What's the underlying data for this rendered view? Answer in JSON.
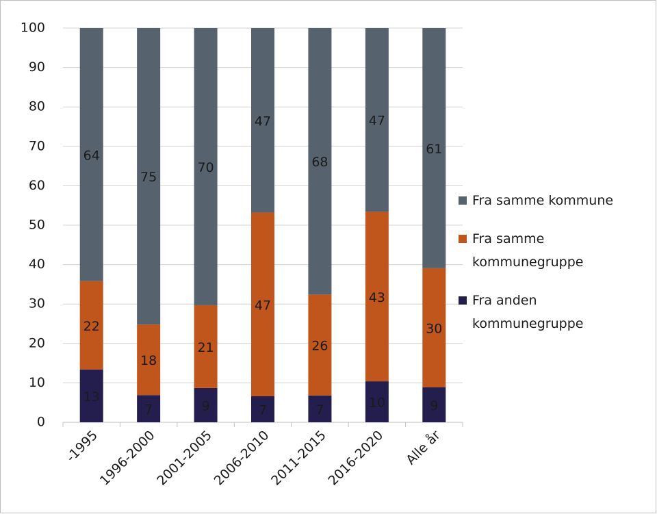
{
  "chart_data": {
    "type": "stacked_bar",
    "categories": [
      "-1995",
      "1996-2000",
      "2001-2005",
      "2006-2010",
      "2011-2015",
      "2016-2020",
      "Alle år"
    ],
    "series": [
      {
        "name": "Fra anden kommunegruppe",
        "color": "#241e4e",
        "values": [
          13.4,
          6.9,
          8.7,
          6.6,
          6.8,
          10.4,
          8.9
        ],
        "value_labels": [
          "13",
          "7",
          "9",
          "7",
          "7",
          "10",
          "9"
        ]
      },
      {
        "name": "Fra samme kommunegruppe",
        "color": "#c0561c",
        "values": [
          22.4,
          17.9,
          21.0,
          46.6,
          25.6,
          43.0,
          30.2
        ],
        "value_labels": [
          "22",
          "18",
          "21",
          "47",
          "26",
          "43",
          "30"
        ]
      },
      {
        "name": "Fra samme kommune",
        "color": "#56636f",
        "values": [
          64.2,
          75.2,
          70.3,
          46.8,
          67.6,
          46.6,
          60.9
        ],
        "value_labels": [
          "64",
          "75",
          "70",
          "47",
          "68",
          "47",
          "61"
        ]
      }
    ],
    "ylim": [
      0,
      100
    ],
    "yticks": [
      0,
      10,
      20,
      30,
      40,
      50,
      60,
      70,
      80,
      90,
      100
    ],
    "grid": true,
    "legend": "right"
  }
}
